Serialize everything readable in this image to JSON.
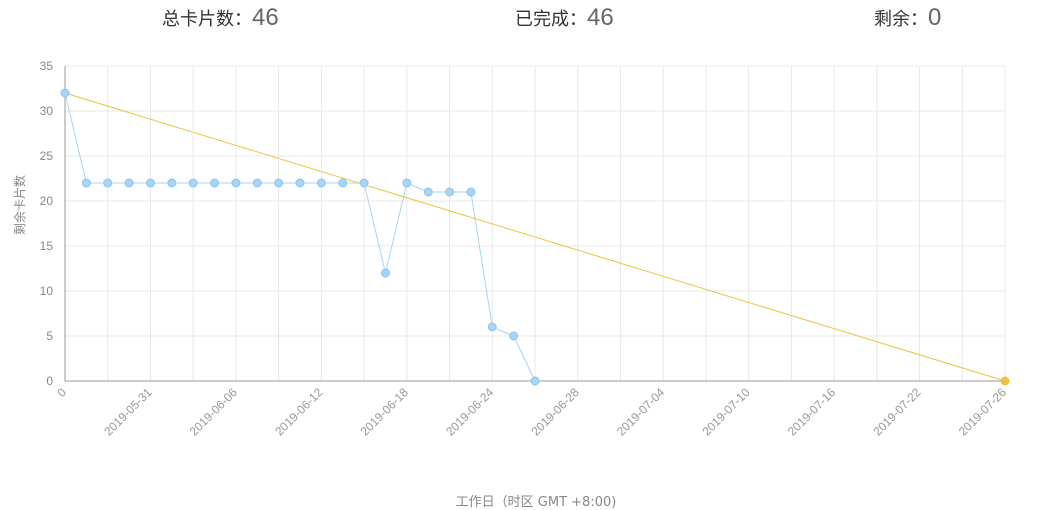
{
  "header": {
    "total_label": "总卡片数：",
    "total_value": "46",
    "done_label": "已完成：",
    "done_value": "46",
    "remaining_label": "剩余：",
    "remaining_value": "0"
  },
  "chart_data": {
    "type": "line",
    "xlabel": "工作日（时区 GMT +8:00)",
    "ylabel": "剩余卡片数",
    "ylim": [
      0,
      35
    ],
    "yticks": [
      0,
      5,
      10,
      15,
      20,
      25,
      30,
      35
    ],
    "xticks": [
      "0",
      "2019-05-31",
      "2019-06-06",
      "2019-06-12",
      "2019-06-18",
      "2019-06-24",
      "2019-06-28",
      "2019-07-04",
      "2019-07-10",
      "2019-07-16",
      "2019-07-22",
      "2019-07-26"
    ],
    "grid": true,
    "series": [
      {
        "color": "#a8d4f5",
        "x": [
          0,
          0.5,
          1.0,
          1.5,
          2.0,
          2.5,
          3.0,
          3.5,
          4.0,
          4.5,
          5.0,
          5.5,
          6.0,
          6.5,
          7.0,
          7.5,
          8.0,
          8.5,
          9.0,
          9.5,
          10.0,
          10.5,
          11.0
        ],
        "values": [
          32,
          22,
          22,
          22,
          22,
          22,
          22,
          22,
          22,
          22,
          22,
          22,
          22,
          22,
          22,
          12,
          22,
          21,
          21,
          21,
          6,
          5,
          0
        ]
      },
      {
        "color": "#f0c040",
        "x": [
          0,
          22.0
        ],
        "values": [
          32,
          0
        ]
      }
    ]
  }
}
